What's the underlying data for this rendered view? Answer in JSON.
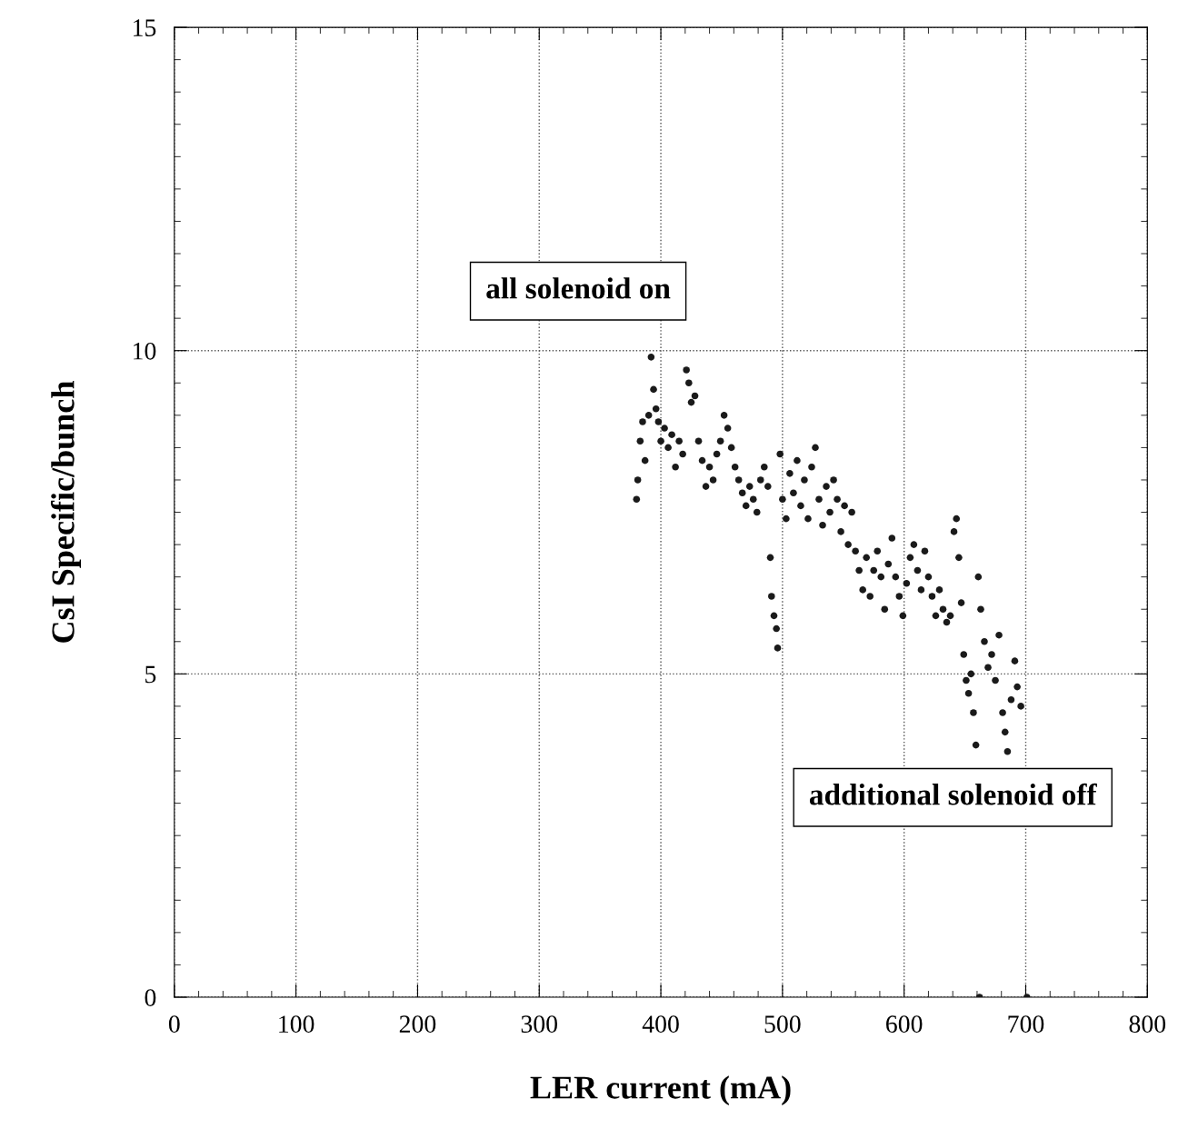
{
  "chart_data": {
    "type": "scatter",
    "xlabel": "LER current (mA)",
    "ylabel": "CsI Specific/bunch",
    "annotations": [
      "all solenoid on",
      "additional solenoid off"
    ],
    "xlim": [
      0,
      800
    ],
    "ylim": [
      0,
      15
    ],
    "xticks": [
      0,
      100,
      200,
      300,
      400,
      500,
      600,
      700,
      800
    ],
    "yticks": [
      0,
      5,
      10,
      15
    ],
    "grid": true,
    "marker": "circle",
    "series": [
      {
        "color": "#1a1a1a",
        "x": [
          380,
          381,
          383,
          385,
          387,
          390,
          392,
          394,
          396,
          398,
          400,
          403,
          406,
          409,
          412,
          415,
          418,
          421,
          423,
          425,
          428,
          431,
          434,
          437,
          440,
          443,
          446,
          449,
          452,
          455,
          458,
          461,
          464,
          467,
          470,
          473,
          476,
          479,
          482,
          485,
          488,
          490,
          491,
          493,
          495,
          496,
          498,
          500,
          503,
          506,
          509,
          512,
          515,
          518,
          521,
          524,
          527,
          530,
          533,
          536,
          539,
          542,
          545,
          548,
          551,
          554,
          557,
          560,
          563,
          566,
          569,
          572,
          575,
          578,
          581,
          584,
          587,
          590,
          593,
          596,
          599,
          602,
          605,
          608,
          611,
          614,
          617,
          620,
          623,
          626,
          629,
          632,
          635,
          638,
          641,
          643,
          645,
          647,
          649,
          651,
          653,
          655,
          657,
          659,
          661,
          663,
          666,
          669,
          672,
          675,
          678,
          681,
          683,
          685,
          688,
          691,
          693,
          696,
          662,
          701
        ],
        "values": [
          7.7,
          8.0,
          8.6,
          8.9,
          8.3,
          9.0,
          9.9,
          9.4,
          9.1,
          8.9,
          8.6,
          8.8,
          8.5,
          8.7,
          8.2,
          8.6,
          8.4,
          9.7,
          9.5,
          9.2,
          9.3,
          8.6,
          8.3,
          7.9,
          8.2,
          8.0,
          8.4,
          8.6,
          9.0,
          8.8,
          8.5,
          8.2,
          8.0,
          7.8,
          7.6,
          7.9,
          7.7,
          7.5,
          8.0,
          8.2,
          7.9,
          6.8,
          6.2,
          5.9,
          5.7,
          5.4,
          8.4,
          7.7,
          7.4,
          8.1,
          7.8,
          8.3,
          7.6,
          8.0,
          7.4,
          8.2,
          8.5,
          7.7,
          7.3,
          7.9,
          7.5,
          8.0,
          7.7,
          7.2,
          7.6,
          7.0,
          7.5,
          6.9,
          6.6,
          6.3,
          6.8,
          6.2,
          6.6,
          6.9,
          6.5,
          6.0,
          6.7,
          7.1,
          6.5,
          6.2,
          5.9,
          6.4,
          6.8,
          7.0,
          6.6,
          6.3,
          6.9,
          6.5,
          6.2,
          5.9,
          6.3,
          6.0,
          5.8,
          5.9,
          7.2,
          7.4,
          6.8,
          6.1,
          5.3,
          4.9,
          4.7,
          5.0,
          4.4,
          3.9,
          6.5,
          6.0,
          5.5,
          5.1,
          5.3,
          4.9,
          5.6,
          4.4,
          4.1,
          3.8,
          4.6,
          5.2,
          4.8,
          4.5,
          0,
          0
        ]
      }
    ]
  }
}
